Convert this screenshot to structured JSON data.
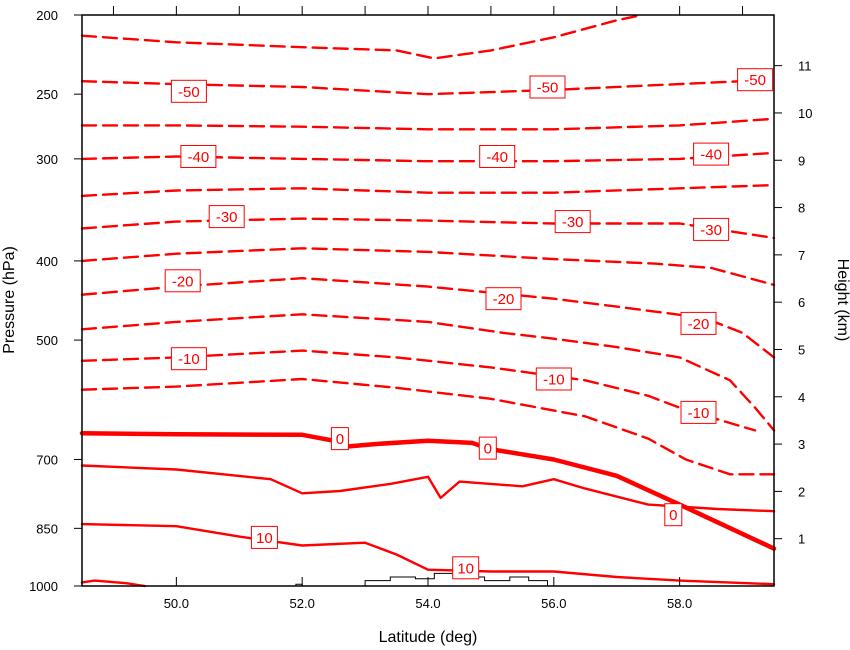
{
  "chart_data": {
    "type": "contour",
    "title": "",
    "xlabel": "Latitude (deg)",
    "ylabel_left": "Pressure (hPa)",
    "ylabel_right": "Height (km)",
    "xlim": [
      48.5,
      59.5
    ],
    "ylim_pressure": [
      1000,
      200
    ],
    "y_scale": "log",
    "x_ticks": [
      {
        "value": 50,
        "label": "50.0"
      },
      {
        "value": 52,
        "label": "52.0"
      },
      {
        "value": 54,
        "label": "54.0"
      },
      {
        "value": 56,
        "label": "56.0"
      },
      {
        "value": 58,
        "label": "58.0"
      }
    ],
    "x_top_ticks": [
      49,
      50,
      51,
      52,
      53,
      54,
      55,
      56,
      57,
      58,
      59
    ],
    "pressure_ticks": [
      {
        "value": 200,
        "label": "200"
      },
      {
        "value": 250,
        "label": "250"
      },
      {
        "value": 300,
        "label": "300"
      },
      {
        "value": 400,
        "label": "400"
      },
      {
        "value": 500,
        "label": "500"
      },
      {
        "value": 700,
        "label": "700"
      },
      {
        "value": 850,
        "label": "850"
      },
      {
        "value": 1000,
        "label": "1000"
      }
    ],
    "height_ticks": [
      {
        "value": 1,
        "label": "1"
      },
      {
        "value": 2,
        "label": "2"
      },
      {
        "value": 3,
        "label": "3"
      },
      {
        "value": 4,
        "label": "4"
      },
      {
        "value": 5,
        "label": "5"
      },
      {
        "value": 6,
        "label": "6"
      },
      {
        "value": 7,
        "label": "7"
      },
      {
        "value": 8,
        "label": "8"
      },
      {
        "value": 9,
        "label": "9"
      },
      {
        "value": 10,
        "label": "10"
      },
      {
        "value": 11,
        "label": "11"
      }
    ],
    "line_color": "#ff0000",
    "terrain_color": "#000000",
    "contours": [
      {
        "level": -60,
        "style": "dashed",
        "points": [
          [
            48.5,
            212
          ],
          [
            50,
            216
          ],
          [
            52,
            219
          ],
          [
            53.5,
            221
          ],
          [
            54.1,
            226
          ],
          [
            55,
            221
          ],
          [
            56,
            213
          ],
          [
            57,
            203
          ],
          [
            57.4,
            200
          ]
        ]
      },
      {
        "level": -50,
        "style": "dashed",
        "points": [
          [
            48.5,
            241
          ],
          [
            50,
            243
          ],
          [
            52,
            245
          ],
          [
            54,
            250
          ],
          [
            56,
            247
          ],
          [
            57.5,
            244
          ],
          [
            59.5,
            240
          ]
        ]
      },
      {
        "level": -45,
        "style": "dashed",
        "points": [
          [
            48.5,
            273
          ],
          [
            50,
            273
          ],
          [
            52,
            274
          ],
          [
            54,
            276
          ],
          [
            56,
            276
          ],
          [
            58,
            273
          ],
          [
            59.5,
            268
          ]
        ]
      },
      {
        "level": -40,
        "style": "dashed",
        "points": [
          [
            48.5,
            300
          ],
          [
            50,
            298
          ],
          [
            52,
            300
          ],
          [
            54,
            302
          ],
          [
            56,
            302
          ],
          [
            58,
            300
          ],
          [
            59.5,
            295
          ]
        ]
      },
      {
        "level": -35,
        "style": "dashed",
        "points": [
          [
            48.5,
            333
          ],
          [
            50,
            328
          ],
          [
            52,
            326
          ],
          [
            54,
            330
          ],
          [
            56,
            330
          ],
          [
            58,
            326
          ],
          [
            59.5,
            323
          ]
        ]
      },
      {
        "level": -30,
        "style": "dashed",
        "points": [
          [
            48.5,
            365
          ],
          [
            50,
            358
          ],
          [
            52,
            355
          ],
          [
            54,
            357
          ],
          [
            56,
            360
          ],
          [
            58,
            360
          ],
          [
            59.5,
            375
          ]
        ]
      },
      {
        "level": -25,
        "style": "dashed",
        "points": [
          [
            48.5,
            400
          ],
          [
            50,
            392
          ],
          [
            52,
            386
          ],
          [
            54,
            390
          ],
          [
            56,
            398
          ],
          [
            57.6,
            403
          ],
          [
            58.5,
            408
          ],
          [
            59.5,
            428
          ]
        ]
      },
      {
        "level": -20,
        "style": "dashed",
        "points": [
          [
            48.5,
            440
          ],
          [
            50,
            430
          ],
          [
            52,
            420
          ],
          [
            54,
            430
          ],
          [
            56,
            445
          ],
          [
            57,
            455
          ],
          [
            58.4,
            470
          ],
          [
            59,
            490
          ],
          [
            59.5,
            525
          ]
        ]
      },
      {
        "level": -15,
        "style": "dashed",
        "points": [
          [
            48.5,
            485
          ],
          [
            50,
            475
          ],
          [
            52,
            465
          ],
          [
            54,
            475
          ],
          [
            55.2,
            490
          ],
          [
            56,
            498
          ],
          [
            57,
            510
          ],
          [
            58,
            525
          ],
          [
            58.8,
            560
          ],
          [
            59.2,
            605
          ],
          [
            59.5,
            645
          ]
        ]
      },
      {
        "level": -10,
        "style": "dashed",
        "points": [
          [
            48.5,
            530
          ],
          [
            50,
            525
          ],
          [
            52,
            515
          ],
          [
            53.5,
            525
          ],
          [
            55,
            540
          ],
          [
            56.5,
            560
          ],
          [
            57.5,
            585
          ],
          [
            58,
            605
          ],
          [
            58.6,
            625
          ],
          [
            59.2,
            645
          ]
        ]
      },
      {
        "level": -5,
        "style": "dashed",
        "points": [
          [
            48.5,
            575
          ],
          [
            50,
            570
          ],
          [
            52,
            558
          ],
          [
            53.5,
            572
          ],
          [
            55,
            590
          ],
          [
            56.5,
            620
          ],
          [
            57.5,
            660
          ],
          [
            58.1,
            700
          ],
          [
            58.8,
            730
          ],
          [
            59.5,
            730
          ]
        ]
      },
      {
        "level": 0,
        "style": "bold",
        "points": [
          [
            48.5,
            650
          ],
          [
            50,
            652
          ],
          [
            52,
            653
          ],
          [
            52.5,
            664
          ],
          [
            52.7,
            675
          ],
          [
            53.2,
            670
          ],
          [
            54,
            664
          ],
          [
            54.7,
            668
          ],
          [
            55,
            680
          ],
          [
            56,
            700
          ],
          [
            57,
            733
          ],
          [
            58,
            795
          ],
          [
            59.5,
            900
          ]
        ]
      },
      {
        "level": 5,
        "style": "solid",
        "points": [
          [
            48.5,
            712
          ],
          [
            50,
            720
          ],
          [
            51.5,
            740
          ],
          [
            52,
            770
          ],
          [
            52.6,
            765
          ],
          [
            53.4,
            750
          ],
          [
            54,
            735
          ],
          [
            54.2,
            780
          ],
          [
            54.5,
            745
          ],
          [
            55.5,
            755
          ],
          [
            56,
            740
          ],
          [
            56.5,
            760
          ],
          [
            57.5,
            795
          ],
          [
            58.6,
            805
          ],
          [
            59.5,
            810
          ]
        ]
      },
      {
        "level": 10,
        "style": "solid",
        "points": [
          [
            48.5,
            840
          ],
          [
            50,
            845
          ],
          [
            51,
            870
          ],
          [
            52,
            892
          ],
          [
            53,
            885
          ],
          [
            53.5,
            915
          ],
          [
            54,
            955
          ],
          [
            55,
            960
          ],
          [
            56,
            960
          ],
          [
            57,
            975
          ],
          [
            58,
            985
          ],
          [
            59.5,
            995
          ]
        ]
      },
      {
        "level": 15,
        "style": "solid",
        "points": [
          [
            48.5,
            990
          ],
          [
            48.7,
            985
          ],
          [
            49.2,
            992
          ],
          [
            49.5,
            1000
          ]
        ]
      }
    ],
    "contour_labels": [
      {
        "text": "-50",
        "x": 50.2,
        "p": 248
      },
      {
        "text": "-50",
        "x": 55.9,
        "p": 245
      },
      {
        "text": "-50",
        "x": 59.2,
        "p": 240
      },
      {
        "text": "-40",
        "x": 50.35,
        "p": 298
      },
      {
        "text": "-40",
        "x": 55.1,
        "p": 298
      },
      {
        "text": "-40",
        "x": 58.5,
        "p": 296
      },
      {
        "text": "-30",
        "x": 50.8,
        "p": 353
      },
      {
        "text": "-30",
        "x": 56.3,
        "p": 358
      },
      {
        "text": "-30",
        "x": 58.5,
        "p": 366
      },
      {
        "text": "-20",
        "x": 50.1,
        "p": 423
      },
      {
        "text": "-20",
        "x": 55.2,
        "p": 445
      },
      {
        "text": "-20",
        "x": 58.3,
        "p": 477
      },
      {
        "text": "-10",
        "x": 50.2,
        "p": 527
      },
      {
        "text": "-10",
        "x": 56.0,
        "p": 558
      },
      {
        "text": "-10",
        "x": 58.3,
        "p": 613
      },
      {
        "text": "0",
        "x": 52.6,
        "p": 660
      },
      {
        "text": "0",
        "x": 54.95,
        "p": 678
      },
      {
        "text": "0",
        "x": 57.9,
        "p": 818
      },
      {
        "text": "10",
        "x": 51.4,
        "p": 872
      },
      {
        "text": "10",
        "x": 54.6,
        "p": 950
      }
    ],
    "terrain": {
      "points": [
        [
          51.9,
          1000
        ],
        [
          51.9,
          995
        ],
        [
          52.0,
          995
        ],
        [
          52.0,
          1000
        ],
        [
          53.0,
          1000
        ],
        [
          53.0,
          985
        ],
        [
          53.4,
          985
        ],
        [
          53.4,
          975
        ],
        [
          53.8,
          975
        ],
        [
          53.8,
          980
        ],
        [
          54.1,
          980
        ],
        [
          54.1,
          965
        ],
        [
          54.5,
          965
        ],
        [
          54.5,
          975
        ],
        [
          54.9,
          975
        ],
        [
          54.9,
          985
        ],
        [
          55.3,
          985
        ],
        [
          55.3,
          975
        ],
        [
          55.6,
          975
        ],
        [
          55.6,
          985
        ],
        [
          55.9,
          985
        ],
        [
          55.9,
          1000
        ]
      ]
    }
  }
}
